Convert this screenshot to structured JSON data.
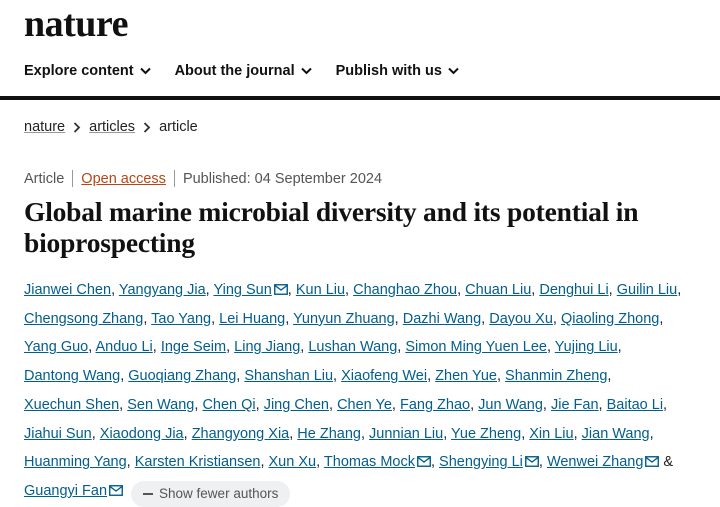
{
  "header": {
    "logo": "nature",
    "nav": [
      "Explore content",
      "About the journal",
      "Publish with us"
    ]
  },
  "breadcrumb": [
    "nature",
    "articles",
    "article"
  ],
  "meta": {
    "type": "Article",
    "access": "Open access",
    "published": "Published: 04 September 2024"
  },
  "title": "Global marine microbial diversity and its potential in bioprospecting",
  "authors": {
    "separator": ",",
    "last_separator": "&",
    "list": [
      {
        "name": "Jianwei Chen",
        "corresponding": false
      },
      {
        "name": "Yangyang Jia",
        "corresponding": false
      },
      {
        "name": "Ying Sun",
        "corresponding": true
      },
      {
        "name": "Kun Liu",
        "corresponding": false
      },
      {
        "name": "Changhao Zhou",
        "corresponding": false
      },
      {
        "name": "Chuan Liu",
        "corresponding": false
      },
      {
        "name": "Denghui Li",
        "corresponding": false
      },
      {
        "name": "Guilin Liu",
        "corresponding": false
      },
      {
        "name": "Chengsong Zhang",
        "corresponding": false
      },
      {
        "name": "Tao Yang",
        "corresponding": false
      },
      {
        "name": "Lei Huang",
        "corresponding": false
      },
      {
        "name": "Yunyun Zhuang",
        "corresponding": false
      },
      {
        "name": "Dazhi Wang",
        "corresponding": false
      },
      {
        "name": "Dayou Xu",
        "corresponding": false
      },
      {
        "name": "Qiaoling Zhong",
        "corresponding": false
      },
      {
        "name": "Yang Guo",
        "corresponding": false
      },
      {
        "name": "Anduo Li",
        "corresponding": false
      },
      {
        "name": "Inge Seim",
        "corresponding": false
      },
      {
        "name": "Ling Jiang",
        "corresponding": false
      },
      {
        "name": "Lushan Wang",
        "corresponding": false
      },
      {
        "name": "Simon Ming Yuen Lee",
        "corresponding": false
      },
      {
        "name": "Yujing Liu",
        "corresponding": false
      },
      {
        "name": "Dantong Wang",
        "corresponding": false
      },
      {
        "name": "Guoqiang Zhang",
        "corresponding": false
      },
      {
        "name": "Shanshan Liu",
        "corresponding": false
      },
      {
        "name": "Xiaofeng Wei",
        "corresponding": false
      },
      {
        "name": "Zhen Yue",
        "corresponding": false
      },
      {
        "name": "Shanmin Zheng",
        "corresponding": false
      },
      {
        "name": "Xuechun Shen",
        "corresponding": false
      },
      {
        "name": "Sen Wang",
        "corresponding": false
      },
      {
        "name": "Chen Qi",
        "corresponding": false
      },
      {
        "name": "Jing Chen",
        "corresponding": false
      },
      {
        "name": "Chen Ye",
        "corresponding": false
      },
      {
        "name": "Fang Zhao",
        "corresponding": false
      },
      {
        "name": "Jun Wang",
        "corresponding": false
      },
      {
        "name": "Jie Fan",
        "corresponding": false
      },
      {
        "name": "Baitao Li",
        "corresponding": false
      },
      {
        "name": "Jiahui Sun",
        "corresponding": false
      },
      {
        "name": "Xiaodong Jia",
        "corresponding": false
      },
      {
        "name": "Zhangyong Xia",
        "corresponding": false
      },
      {
        "name": "He Zhang",
        "corresponding": false
      },
      {
        "name": "Junnian Liu",
        "corresponding": false
      },
      {
        "name": "Yue Zheng",
        "corresponding": false
      },
      {
        "name": "Xin Liu",
        "corresponding": false
      },
      {
        "name": "Jian Wang",
        "corresponding": false
      },
      {
        "name": "Huanming Yang",
        "corresponding": false
      },
      {
        "name": "Karsten Kristiansen",
        "corresponding": false
      },
      {
        "name": "Xun Xu",
        "corresponding": false
      },
      {
        "name": "Thomas Mock",
        "corresponding": true
      },
      {
        "name": "Shengying Li",
        "corresponding": true
      },
      {
        "name": "Wenwei Zhang",
        "corresponding": true
      },
      {
        "name": "Guangyi Fan",
        "corresponding": true
      }
    ],
    "toggle": "Show fewer authors"
  }
}
